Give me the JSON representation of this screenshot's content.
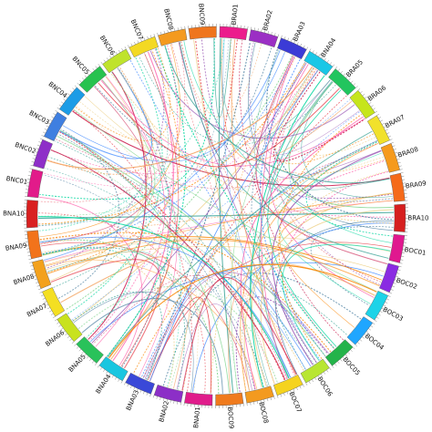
{
  "chromosomes": [
    {
      "label": "BRA01",
      "color": "#ec1c8c"
    },
    {
      "label": "BRA02",
      "color": "#9b2fc4"
    },
    {
      "label": "BRA03",
      "color": "#3b3bd6"
    },
    {
      "label": "BNA04",
      "color": "#19c7e6"
    },
    {
      "label": "BRA05",
      "color": "#22c55e"
    },
    {
      "label": "BRA06",
      "color": "#c6e51b"
    },
    {
      "label": "BRA07",
      "color": "#f1e12c"
    },
    {
      "label": "BRA08",
      "color": "#f59a1d"
    },
    {
      "label": "BRA09",
      "color": "#f56a1a"
    },
    {
      "label": "BRA10",
      "color": "#d61f1f"
    },
    {
      "label": "BOC01",
      "color": "#e0188f"
    },
    {
      "label": "BOC02",
      "color": "#8a2be2"
    },
    {
      "label": "BOC03",
      "color": "#1dd3e8"
    },
    {
      "label": "BOC04",
      "color": "#1fa6ff"
    },
    {
      "label": "BOC05",
      "color": "#24b34a"
    },
    {
      "label": "BOC06",
      "color": "#b8e632"
    },
    {
      "label": "BOC07",
      "color": "#f5d31e"
    },
    {
      "label": "BOC08",
      "color": "#f39a1f"
    },
    {
      "label": "BOC09",
      "color": "#f07b1d"
    },
    {
      "label": "BNA01",
      "color": "#e01c8b"
    },
    {
      "label": "BNA02",
      "color": "#8c2fc7"
    },
    {
      "label": "BNA03",
      "color": "#3a48d8"
    },
    {
      "label": "BNA04",
      "color": "#19c6e0"
    },
    {
      "label": "BNA05",
      "color": "#29c25a"
    },
    {
      "label": "BNA06",
      "color": "#c8e21e"
    },
    {
      "label": "BNA07",
      "color": "#f4df22"
    },
    {
      "label": "BNA08",
      "color": "#f3a11c"
    },
    {
      "label": "BNA09",
      "color": "#f2731b"
    },
    {
      "label": "BNA10",
      "color": "#d92020"
    },
    {
      "label": "BNC01",
      "color": "#e21b8a"
    },
    {
      "label": "BNC02",
      "color": "#8e2fc8"
    },
    {
      "label": "BNC03",
      "color": "#3f7fe0"
    },
    {
      "label": "BNC04",
      "color": "#1c9ce6"
    },
    {
      "label": "BNC05",
      "color": "#27c24f"
    },
    {
      "label": "BNC06",
      "color": "#bfe32c"
    },
    {
      "label": "BNC07",
      "color": "#f3d923"
    },
    {
      "label": "BNC08",
      "color": "#f49a1f"
    },
    {
      "label": "BNC09",
      "color": "#ef751d"
    }
  ],
  "link_palette": [
    "#e63946",
    "#f4a261",
    "#e9c46a",
    "#2a9d8f",
    "#457b9d",
    "#8e44ad",
    "#ff4fa3",
    "#7bd389",
    "#3a86ff",
    "#c9184a",
    "#fb8500",
    "#06d6a0"
  ]
}
